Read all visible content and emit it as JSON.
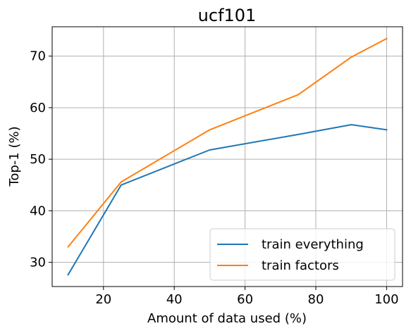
{
  "chart_data": {
    "type": "line",
    "title": "ucf101",
    "xlabel": "Amount of data used (%)",
    "ylabel": "Top-1 (%)",
    "xlim": [
      5.5,
      104.5
    ],
    "ylim": [
      25.3,
      75.7
    ],
    "xticks": [
      20,
      40,
      60,
      80,
      100
    ],
    "yticks": [
      30,
      40,
      50,
      60,
      70
    ],
    "grid": true,
    "legend_position": "lower-right",
    "series": [
      {
        "name": "train everything",
        "color": "#1f77b4",
        "x": [
          10,
          25,
          50,
          75,
          90,
          100
        ],
        "y": [
          27.6,
          45.0,
          51.8,
          54.8,
          56.7,
          55.7
        ]
      },
      {
        "name": "train factors",
        "color": "#ff7f0e",
        "x": [
          10,
          25,
          50,
          75,
          90,
          100
        ],
        "y": [
          33.0,
          45.6,
          55.7,
          62.5,
          69.8,
          73.4
        ]
      }
    ]
  }
}
